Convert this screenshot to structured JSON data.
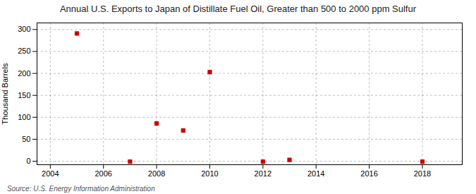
{
  "chart_data": {
    "type": "scatter",
    "title": "Annual U.S. Exports to Japan of Distillate Fuel Oil, Greater than 500 to 2000 ppm Sulfur",
    "ylabel": "Thousand Barrels",
    "caption": "Source: U.S. Energy Information Administration",
    "x": [
      2005,
      2007,
      2008,
      2009,
      2010,
      2012,
      2013,
      2018
    ],
    "values": [
      291,
      -1,
      86,
      70,
      203,
      -1,
      3,
      -1
    ],
    "color": "#cc0000",
    "marker": "square",
    "xlim": [
      2003.5,
      2019.5
    ],
    "xticks": [
      2004,
      2006,
      2008,
      2010,
      2012,
      2014,
      2016,
      2018
    ],
    "ylim": [
      -8,
      315
    ],
    "yticks": [
      0,
      50,
      100,
      150,
      200,
      250,
      300
    ],
    "grid": true
  }
}
